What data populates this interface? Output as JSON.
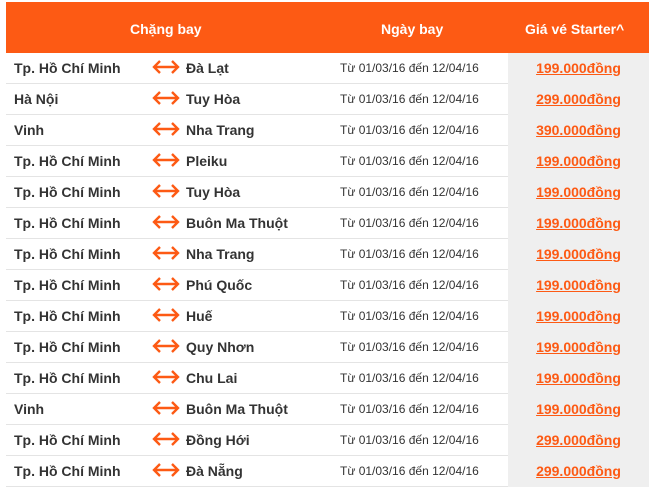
{
  "header": {
    "route": "Chặng bay",
    "date": "Ngày bay",
    "price": "Giá vé Starter^"
  },
  "accent": "#fd5a14",
  "rows": [
    {
      "from": "Tp. Hồ Chí Minh",
      "to": "Đà Lạt",
      "dates": "Từ 01/03/16 đến 12/04/16",
      "price": "199.000đồng"
    },
    {
      "from": "Hà Nội",
      "to": "Tuy Hòa",
      "dates": "Từ 01/03/16 đến 12/04/16",
      "price": "299.000đồng"
    },
    {
      "from": "Vinh",
      "to": "Nha Trang",
      "dates": "Từ 01/03/16 đến 12/04/16",
      "price": "390.000đồng"
    },
    {
      "from": "Tp. Hồ Chí Minh",
      "to": "Pleiku",
      "dates": "Từ 01/03/16 đến 12/04/16",
      "price": "199.000đồng"
    },
    {
      "from": "Tp. Hồ Chí Minh",
      "to": "Tuy Hòa",
      "dates": "Từ 01/03/16 đến 12/04/16",
      "price": "199.000đồng"
    },
    {
      "from": "Tp. Hồ Chí Minh",
      "to": "Buôn Ma Thuột",
      "dates": "Từ 01/03/16 đến 12/04/16",
      "price": "199.000đồng"
    },
    {
      "from": "Tp. Hồ Chí Minh",
      "to": "Nha Trang",
      "dates": "Từ 01/03/16 đến 12/04/16",
      "price": "199.000đồng"
    },
    {
      "from": "Tp. Hồ Chí Minh",
      "to": "Phú Quốc",
      "dates": "Từ 01/03/16 đến 12/04/16",
      "price": "199.000đồng"
    },
    {
      "from": "Tp. Hồ Chí Minh",
      "to": "Huế",
      "dates": "Từ 01/03/16 đến 12/04/16",
      "price": "199.000đồng"
    },
    {
      "from": "Tp. Hồ Chí Minh",
      "to": "Quy Nhơn",
      "dates": "Từ 01/03/16 đến 12/04/16",
      "price": "199.000đồng"
    },
    {
      "from": "Tp. Hồ Chí Minh",
      "to": "Chu Lai",
      "dates": "Từ 01/03/16 đến 12/04/16",
      "price": "199.000đồng"
    },
    {
      "from": "Vinh",
      "to": "Buôn Ma Thuột",
      "dates": "Từ 01/03/16 đến 12/04/16",
      "price": "199.000đồng"
    },
    {
      "from": "Tp. Hồ Chí Minh",
      "to": "Đồng Hới",
      "dates": "Từ 01/03/16 đến 12/04/16",
      "price": "299.000đồng"
    },
    {
      "from": "Tp. Hồ Chí Minh",
      "to": "Đà Nẵng",
      "dates": "Từ 01/03/16 đến 12/04/16",
      "price": "299.000đồng"
    }
  ]
}
